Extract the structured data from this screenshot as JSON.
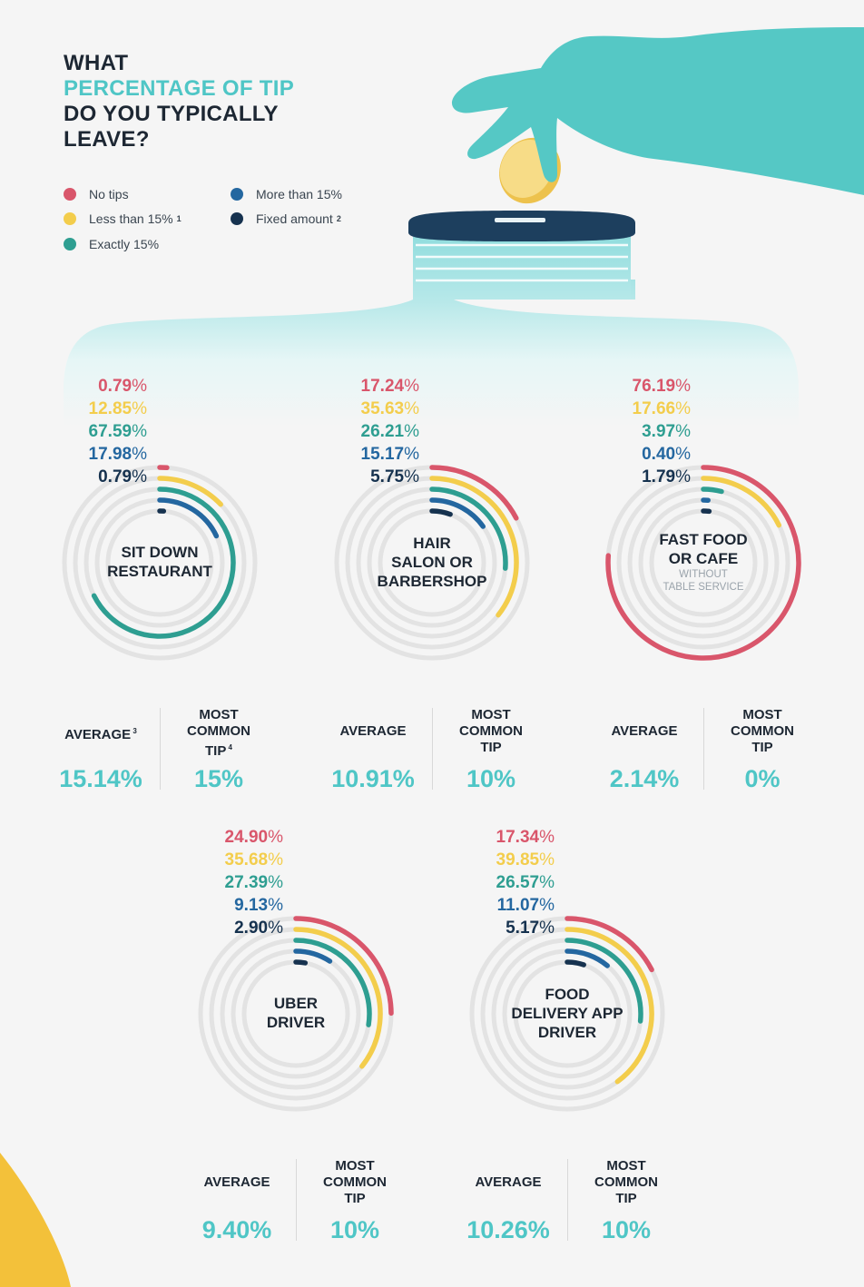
{
  "title": {
    "line1": "WHAT",
    "line2": "PERCENTAGE OF TIP",
    "line3": "DO YOU TYPICALLY",
    "line4": "LEAVE?"
  },
  "legend": [
    {
      "label": "No tips",
      "note": "",
      "color": "#d9566b"
    },
    {
      "label": "Less than 15%",
      "note": "1",
      "color": "#f3cd4c"
    },
    {
      "label": "Exactly 15%",
      "note": "",
      "color": "#2e9e91"
    },
    {
      "label": "More than 15%",
      "note": "",
      "color": "#2467a0"
    },
    {
      "label": "Fixed amount",
      "note": "2",
      "color": "#16324f"
    }
  ],
  "colors": {
    "accent": "#4fc6c6",
    "track": "#e3e3e3",
    "jar": "#cfeff0",
    "hand": "#55c8c5",
    "lid": "#1d3f5e",
    "coin": "#f6d978"
  },
  "chart_data": [
    {
      "type": "radial-bar",
      "label": "SIT DOWN\nRESTAURANT",
      "sub": "",
      "categories": [
        "No tips",
        "Less than 15%",
        "Exactly 15%",
        "More than 15%",
        "Fixed amount"
      ],
      "values": [
        0.79,
        12.85,
        67.59,
        17.98,
        0.79
      ],
      "labels": [
        "0.79",
        "12.85",
        "67.59",
        "17.98",
        "0.79"
      ],
      "average_label": "AVERAGE",
      "average_note": "3",
      "average": "15.14%",
      "common_label": "MOST\nCOMMON\nTIP",
      "common_note": "4",
      "common": "15%"
    },
    {
      "type": "radial-bar",
      "label": "HAIR\nSALON OR\nBARBERSHOP",
      "sub": "",
      "categories": [
        "No tips",
        "Less than 15%",
        "Exactly 15%",
        "More than 15%",
        "Fixed amount"
      ],
      "values": [
        17.24,
        35.63,
        26.21,
        15.17,
        5.75
      ],
      "labels": [
        "17.24",
        "35.63",
        "26.21",
        "15.17",
        "5.75"
      ],
      "average_label": "AVERAGE",
      "average_note": "",
      "average": "10.91%",
      "common_label": "MOST\nCOMMON\nTIP",
      "common_note": "",
      "common": "10%"
    },
    {
      "type": "radial-bar",
      "label": "FAST FOOD\nOR CAFE",
      "sub": "WITHOUT\nTABLE SERVICE",
      "categories": [
        "No tips",
        "Less than 15%",
        "Exactly 15%",
        "More than 15%",
        "Fixed amount"
      ],
      "values": [
        76.19,
        17.66,
        3.97,
        0.4,
        1.79
      ],
      "labels": [
        "76.19",
        "17.66",
        "3.97",
        "0.40",
        "1.79"
      ],
      "average_label": "AVERAGE",
      "average_note": "",
      "average": "2.14%",
      "common_label": "MOST\nCOMMON\nTIP",
      "common_note": "",
      "common": "0%"
    },
    {
      "type": "radial-bar",
      "label": "UBER\nDRIVER",
      "sub": "",
      "categories": [
        "No tips",
        "Less than 15%",
        "Exactly 15%",
        "More than 15%",
        "Fixed amount"
      ],
      "values": [
        24.9,
        35.68,
        27.39,
        9.13,
        2.9
      ],
      "labels": [
        "24.90",
        "35.68",
        "27.39",
        "9.13",
        "2.90"
      ],
      "average_label": "AVERAGE",
      "average_note": "",
      "average": "9.40%",
      "common_label": "MOST\nCOMMON\nTIP",
      "common_note": "",
      "common": "10%"
    },
    {
      "type": "radial-bar",
      "label": "FOOD\nDELIVERY APP\nDRIVER",
      "sub": "",
      "categories": [
        "No tips",
        "Less than 15%",
        "Exactly 15%",
        "More than 15%",
        "Fixed amount"
      ],
      "values": [
        17.34,
        39.85,
        26.57,
        11.07,
        5.17
      ],
      "labels": [
        "17.34",
        "39.85",
        "26.57",
        "11.07",
        "5.17"
      ],
      "average_label": "AVERAGE",
      "average_note": "",
      "average": "10.26%",
      "common_label": "MOST\nCOMMON\nTIP",
      "common_note": "",
      "common": "10%"
    }
  ]
}
